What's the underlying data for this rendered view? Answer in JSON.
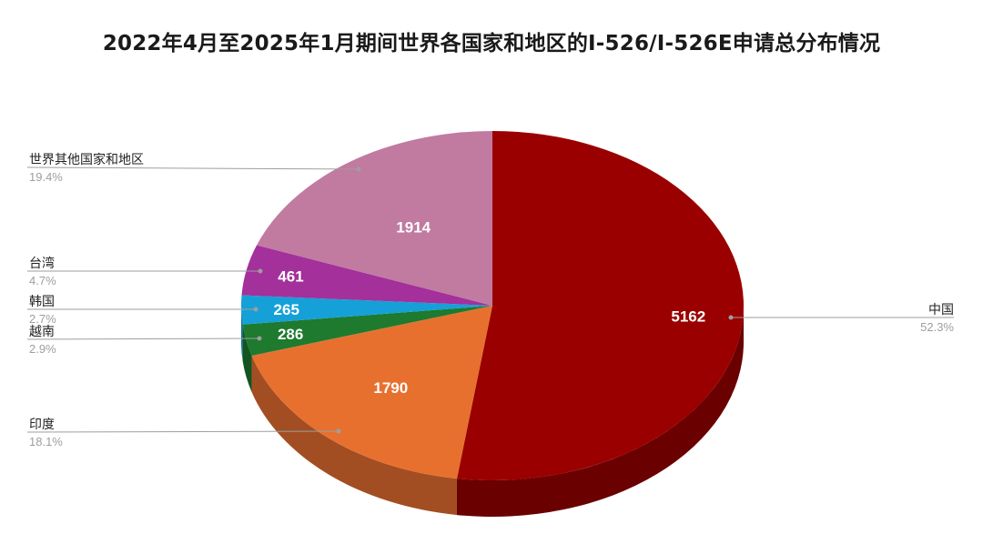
{
  "chart_data": {
    "type": "pie",
    "title": "2022年4月至2025年1月期间世界各国家和地区的I-526/I-526E申请总分布情况",
    "slices": [
      {
        "name": "中国",
        "value": 5162,
        "value_label": "5162",
        "percent": "52.3%",
        "color": "#9b0000",
        "side_color": "#6a0000"
      },
      {
        "name": "印度",
        "value": 1790,
        "value_label": "1790",
        "percent": "18.1%",
        "color": "#e8702f",
        "side_color": "#a34e22"
      },
      {
        "name": "越南",
        "value": 286,
        "value_label": "286",
        "percent": "2.9%",
        "color": "#1d7a2e",
        "side_color": "#135420"
      },
      {
        "name": "韩国",
        "value": 265,
        "value_label": "265",
        "percent": "2.7%",
        "color": "#15a0d8",
        "side_color": "#0e6f96"
      },
      {
        "name": "台湾",
        "value": 461,
        "value_label": "461",
        "percent": "4.7%",
        "color": "#a3309b",
        "side_color": "#71216c"
      },
      {
        "name": "世界其他国家和地区",
        "value": 1914,
        "value_label": "1914",
        "percent": "19.4%",
        "color": "#c17aa0",
        "side_color": "#87556f"
      }
    ],
    "legend": "callout-labels"
  }
}
